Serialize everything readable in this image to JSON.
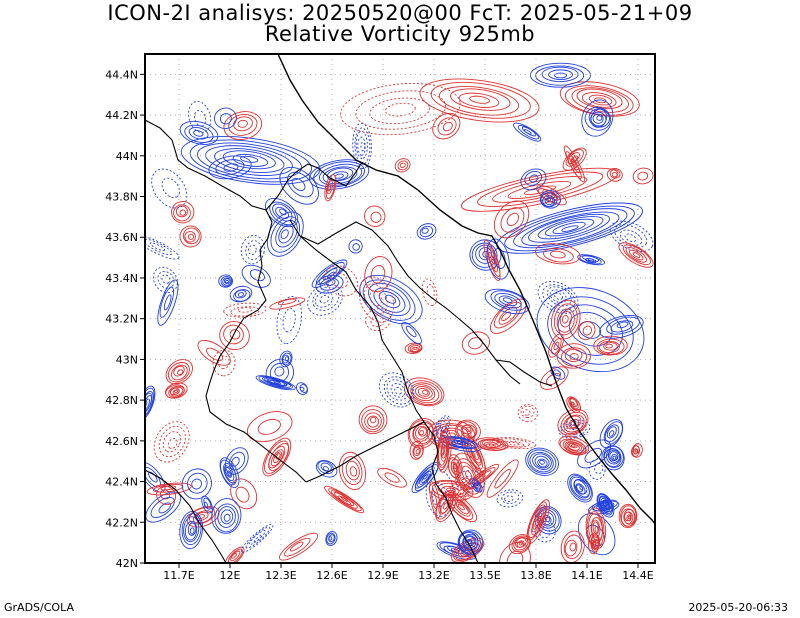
{
  "header": {
    "title_line1": "ICON-2I analisys: 20250520@00 FcT: 2025-05-21+09",
    "title_line2": "Relative Vorticity 925mb"
  },
  "footer": {
    "left": "GrADS/COLA",
    "right": "2025-05-20-06:33"
  },
  "map": {
    "lon_range": [
      11.5,
      14.5
    ],
    "lat_range": [
      42.0,
      44.5
    ],
    "lon_ticks": [
      {
        "value": 11.7,
        "label": "11.7E"
      },
      {
        "value": 12.0,
        "label": "12E"
      },
      {
        "value": 12.3,
        "label": "12.3E"
      },
      {
        "value": 12.6,
        "label": "12.6E"
      },
      {
        "value": 12.9,
        "label": "12.9E"
      },
      {
        "value": 13.2,
        "label": "13.2E"
      },
      {
        "value": 13.5,
        "label": "13.5E"
      },
      {
        "value": 13.8,
        "label": "13.8E"
      },
      {
        "value": 14.1,
        "label": "14.1E"
      },
      {
        "value": 14.4,
        "label": "14.4E"
      }
    ],
    "lat_ticks": [
      {
        "value": 42.0,
        "label": "42N"
      },
      {
        "value": 42.2,
        "label": "42.2N"
      },
      {
        "value": 42.4,
        "label": "42.4N"
      },
      {
        "value": 42.6,
        "label": "42.6N"
      },
      {
        "value": 42.8,
        "label": "42.8N"
      },
      {
        "value": 43.0,
        "label": "43N"
      },
      {
        "value": 43.2,
        "label": "43.2N"
      },
      {
        "value": 43.4,
        "label": "43.4N"
      },
      {
        "value": 43.6,
        "label": "43.6N"
      },
      {
        "value": 43.8,
        "label": "43.8N"
      },
      {
        "value": 44.0,
        "label": "44N"
      },
      {
        "value": 44.2,
        "label": "44.2N"
      },
      {
        "value": 44.4,
        "label": "44.4N"
      }
    ],
    "colors": {
      "positive_contour": "#e03030",
      "negative_contour": "#2040e0",
      "border": "#000000",
      "grid": "#999999"
    }
  }
}
